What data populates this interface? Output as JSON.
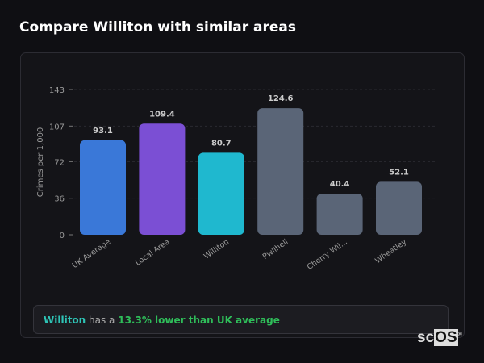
{
  "title": "Compare Williton with similar areas",
  "chart_data": {
    "type": "bar",
    "categories": [
      "UK Average",
      "Local Area",
      "Williton",
      "Pwllheli",
      "Cherry Wil...",
      "Wheatley"
    ],
    "values": [
      93.1,
      109.4,
      80.7,
      124.6,
      40.4,
      52.1
    ],
    "value_labels": [
      "93.1",
      "109.4",
      "80.7",
      "124.6",
      "40.4",
      "52.1"
    ],
    "colors": [
      "#3a78d8",
      "#7b4fd4",
      "#1fb8cf",
      "#5a6577",
      "#5a6577",
      "#5a6577"
    ],
    "ylabel": "Crimes per 1,000",
    "xlabel": "",
    "yticks": [
      0,
      36,
      72,
      107,
      143
    ],
    "ylim": [
      0,
      143
    ],
    "grid": true,
    "legend": "none"
  },
  "summary": {
    "area": "Williton",
    "middle": " has a ",
    "comparison": "13.3% lower than UK average"
  },
  "logo": {
    "prefix": "sc",
    "boxed": "OS",
    "mark": "®"
  }
}
